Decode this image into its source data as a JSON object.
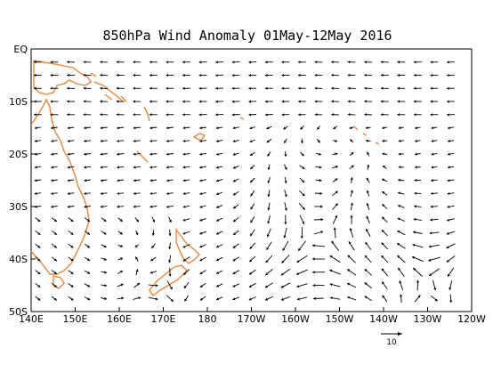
{
  "title": "850hPa Wind Anomaly 01May-12May 2016",
  "x_ticks": [
    "140E",
    "150E",
    "160E",
    "170E",
    "180",
    "170W",
    "160W",
    "150W",
    "140W",
    "130W",
    "120W"
  ],
  "y_ticks": [
    "EQ",
    "10S",
    "20S",
    "30S",
    "40S",
    "50S"
  ],
  "reference_vector": {
    "label": "10",
    "magnitude": 10
  },
  "colors": {
    "coastline": "#e8883a",
    "vectors": "#000000",
    "frame": "#000000"
  }
}
